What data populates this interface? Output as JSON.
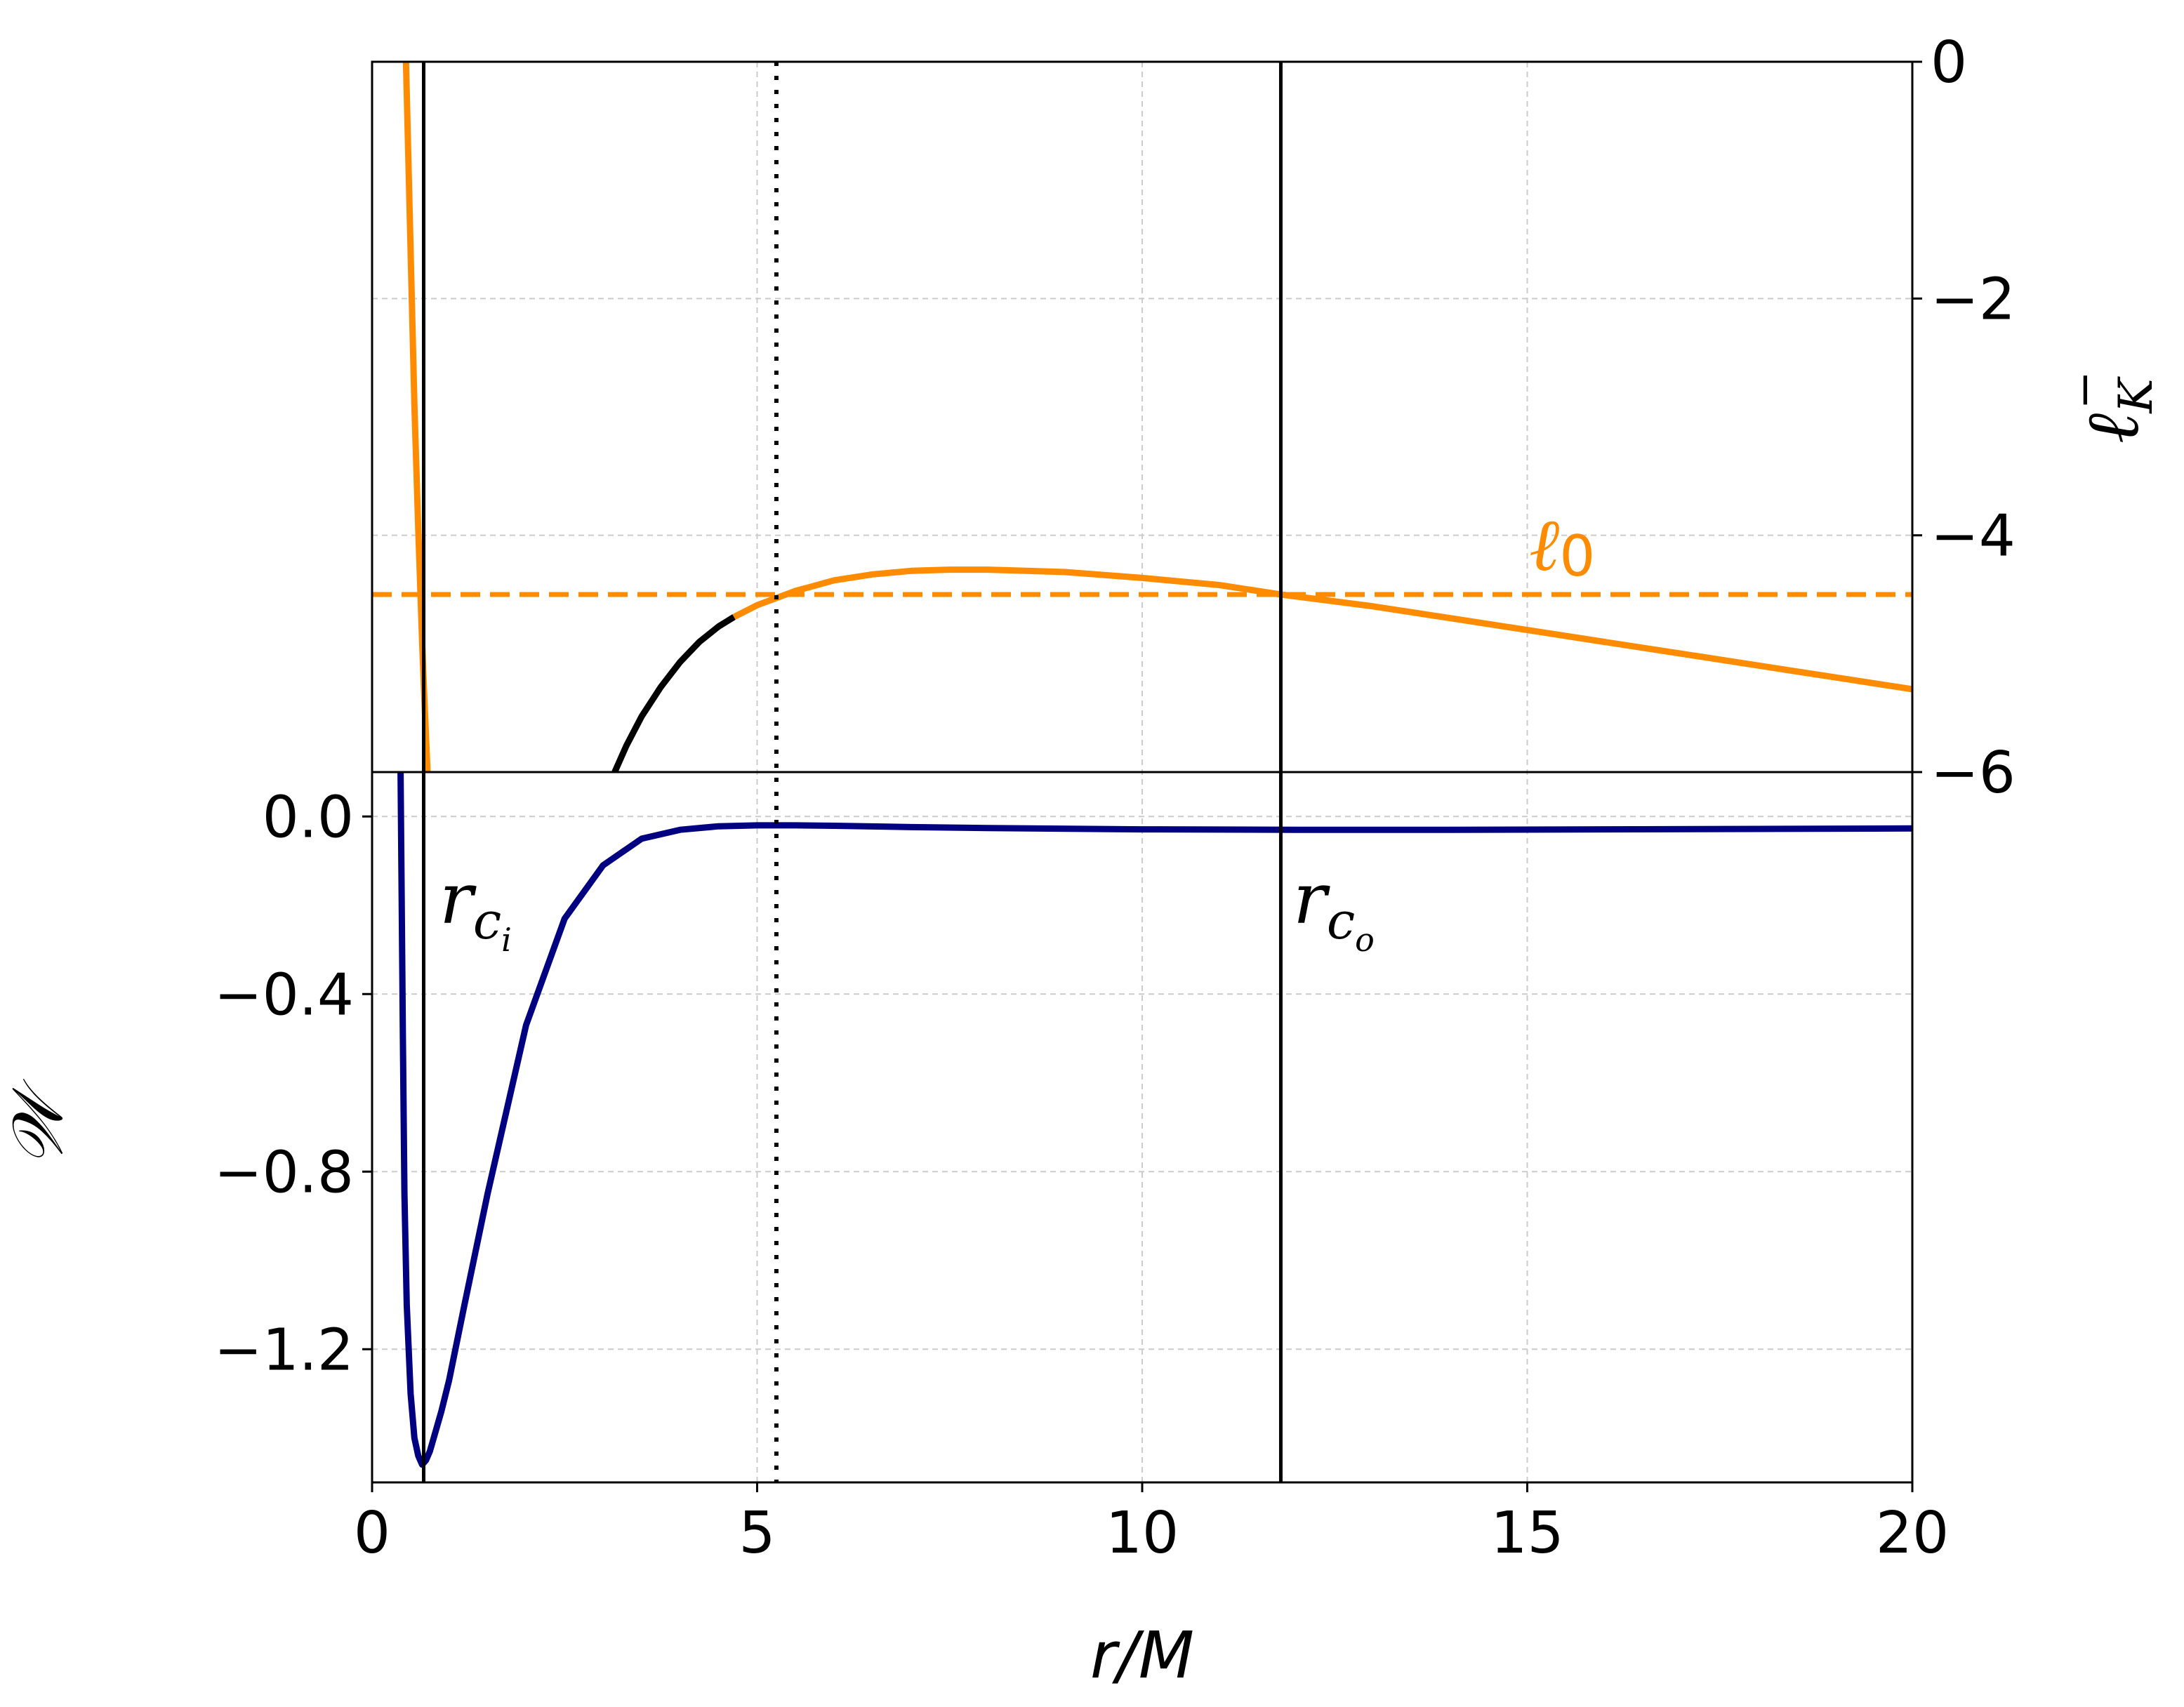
{
  "chart_data": {
    "type": "line",
    "x_axis": {
      "label": "r/M",
      "range": [
        0,
        20
      ],
      "ticks": [
        0,
        5,
        10,
        15,
        20
      ],
      "tick_labels": [
        "0",
        "5",
        "10",
        "15",
        "20"
      ]
    },
    "grid": true,
    "top_panel": {
      "y_axis_side": "right",
      "y_label": "ℓ_K^−",
      "ylim": [
        -6,
        0
      ],
      "ticks": [
        0,
        -2,
        -4,
        -6
      ],
      "tick_labels": [
        "0",
        "−2",
        "−4",
        "−6"
      ],
      "colors": {
        "unstable": "#000000",
        "stable": "#ff8c00",
        "ell0": "#ff8c00"
      },
      "ell0": {
        "label": "ℓ0",
        "value": -4.5
      },
      "series": [
        {
          "x": [
            0.44,
            0.47,
            0.5,
            0.55,
            0.6,
            0.65,
            0.68,
            0.72
          ],
          "y": [
            0.0,
            -0.8,
            -1.6,
            -2.9,
            -3.95,
            -4.9,
            -5.4,
            -6.0
          ]
        },
        {
          "x": [
            3.15,
            3.3,
            3.5,
            3.75,
            4.0,
            4.25,
            4.5,
            4.7
          ],
          "y": [
            -6.0,
            -5.78,
            -5.53,
            -5.28,
            -5.07,
            -4.9,
            -4.77,
            -4.69
          ]
        },
        {
          "x": [
            4.7,
            5.0,
            5.5,
            6.0,
            6.5,
            7.0,
            7.5,
            8.0,
            8.5,
            9.0,
            10.0,
            11.0,
            11.8,
            13.0,
            14.0,
            15.0,
            16.0,
            17.0,
            18.0,
            19.0,
            20.0
          ],
          "y": [
            -4.69,
            -4.59,
            -4.47,
            -4.38,
            -4.33,
            -4.3,
            -4.29,
            -4.29,
            -4.3,
            -4.31,
            -4.36,
            -4.42,
            -4.5,
            -4.6,
            -4.7,
            -4.8,
            -4.9,
            -5.0,
            -5.1,
            -5.2,
            -5.3
          ]
        }
      ]
    },
    "bottom_panel": {
      "y_label": "𝒲",
      "ylim": [
        -1.5,
        0.1
      ],
      "ticks": [
        0.0,
        -0.4,
        -0.8,
        -1.2
      ],
      "tick_labels": [
        "0.0",
        "−0.4",
        "−0.8",
        "−1.2"
      ],
      "series": [
        {
          "color": "#000080",
          "x": [
            0.37,
            0.38,
            0.4,
            0.42,
            0.45,
            0.5,
            0.55,
            0.6,
            0.65,
            0.7,
            0.75,
            0.8,
            0.9,
            1.0,
            1.2,
            1.5,
            2.0,
            2.5,
            3.0,
            3.5,
            4.0,
            4.5,
            5.0,
            5.5,
            6.0,
            7.0,
            8.0,
            10.0,
            12.0,
            14.0,
            16.0,
            18.0,
            20.0
          ],
          "y": [
            0.1,
            -0.1,
            -0.5,
            -0.85,
            -1.1,
            -1.3,
            -1.4,
            -1.44,
            -1.46,
            -1.45,
            -1.43,
            -1.4,
            -1.34,
            -1.27,
            -1.1,
            -0.85,
            -0.47,
            -0.23,
            -0.11,
            -0.05,
            -0.03,
            -0.022,
            -0.02,
            -0.02,
            -0.021,
            -0.024,
            -0.026,
            -0.029,
            -0.03,
            -0.03,
            -0.029,
            -0.028,
            -0.027
          ]
        }
      ]
    },
    "vertical_lines": [
      {
        "x": 0.67,
        "style": "solid",
        "label": "r_c_i",
        "label_main": "r",
        "label_sub": "c",
        "label_subsub": "i"
      },
      {
        "x": 5.25,
        "style": "dotted"
      },
      {
        "x": 11.8,
        "style": "solid",
        "label": "r_c_o",
        "label_main": "r",
        "label_sub": "c",
        "label_subsub": "o"
      }
    ]
  }
}
